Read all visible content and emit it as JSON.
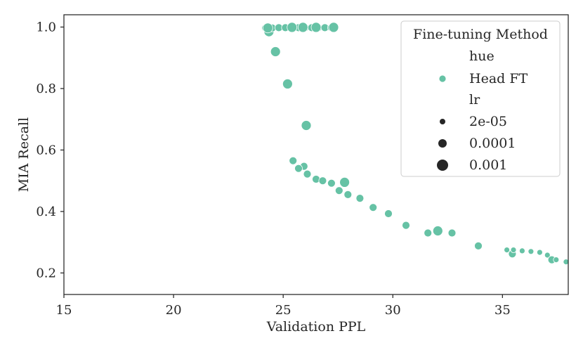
{
  "chart_data": {
    "type": "scatter",
    "xlabel": "Validation PPL",
    "ylabel": "MIA Recall",
    "xlim": [
      15,
      38
    ],
    "ylim": [
      0.13,
      1.04
    ],
    "xticks": [
      15,
      20,
      25,
      30,
      35
    ],
    "yticks": [
      0.2,
      0.4,
      0.6,
      0.8,
      1.0
    ],
    "ytick_labels": [
      "0.2",
      "0.4",
      "0.6",
      "0.8",
      "1.0"
    ],
    "grid": false,
    "color": "#66c2a5",
    "legend": {
      "placement": "top-right",
      "title": "Fine-tuning Method",
      "hue_header": "hue",
      "hue_label": "Head FT",
      "size_header": "lr",
      "size_labels": [
        "2e-05",
        "0.0001",
        "0.001"
      ]
    },
    "series": [
      {
        "name": "Head FT",
        "points": [
          {
            "x": 24.2,
            "y": 0.997,
            "lr": "0.0001"
          },
          {
            "x": 24.35,
            "y": 0.985,
            "lr": "0.001"
          },
          {
            "x": 24.5,
            "y": 0.997,
            "lr": "0.0001"
          },
          {
            "x": 24.8,
            "y": 0.998,
            "lr": "0.0001"
          },
          {
            "x": 25.1,
            "y": 0.998,
            "lr": "0.0001"
          },
          {
            "x": 25.4,
            "y": 0.998,
            "lr": "0.0001"
          },
          {
            "x": 25.7,
            "y": 0.998,
            "lr": "0.0001"
          },
          {
            "x": 26.0,
            "y": 0.998,
            "lr": "0.0001"
          },
          {
            "x": 26.3,
            "y": 0.998,
            "lr": "0.0001"
          },
          {
            "x": 26.6,
            "y": 0.998,
            "lr": "0.0001"
          },
          {
            "x": 26.9,
            "y": 0.998,
            "lr": "0.0001"
          },
          {
            "x": 27.2,
            "y": 0.998,
            "lr": "0.0001"
          },
          {
            "x": 24.3,
            "y": 0.997,
            "lr": "0.001"
          },
          {
            "x": 25.4,
            "y": 0.999,
            "lr": "0.001"
          },
          {
            "x": 25.9,
            "y": 0.999,
            "lr": "0.001"
          },
          {
            "x": 26.5,
            "y": 0.999,
            "lr": "0.001"
          },
          {
            "x": 27.3,
            "y": 0.999,
            "lr": "0.001"
          },
          {
            "x": 24.65,
            "y": 0.92,
            "lr": "0.001"
          },
          {
            "x": 25.2,
            "y": 0.815,
            "lr": "0.001"
          },
          {
            "x": 26.05,
            "y": 0.68,
            "lr": "0.001"
          },
          {
            "x": 25.45,
            "y": 0.565,
            "lr": "0.0001"
          },
          {
            "x": 25.95,
            "y": 0.547,
            "lr": "0.0001"
          },
          {
            "x": 25.7,
            "y": 0.54,
            "lr": "0.0001"
          },
          {
            "x": 26.1,
            "y": 0.522,
            "lr": "0.0001"
          },
          {
            "x": 26.5,
            "y": 0.505,
            "lr": "0.0001"
          },
          {
            "x": 26.8,
            "y": 0.5,
            "lr": "0.0001"
          },
          {
            "x": 27.2,
            "y": 0.492,
            "lr": "0.0001"
          },
          {
            "x": 27.8,
            "y": 0.495,
            "lr": "0.001"
          },
          {
            "x": 27.55,
            "y": 0.468,
            "lr": "0.0001"
          },
          {
            "x": 27.95,
            "y": 0.455,
            "lr": "0.0001"
          },
          {
            "x": 28.5,
            "y": 0.443,
            "lr": "0.0001"
          },
          {
            "x": 29.1,
            "y": 0.413,
            "lr": "0.0001"
          },
          {
            "x": 29.8,
            "y": 0.393,
            "lr": "0.0001"
          },
          {
            "x": 30.6,
            "y": 0.355,
            "lr": "0.0001"
          },
          {
            "x": 31.6,
            "y": 0.33,
            "lr": "0.0001"
          },
          {
            "x": 32.05,
            "y": 0.337,
            "lr": "0.001"
          },
          {
            "x": 32.7,
            "y": 0.33,
            "lr": "0.0001"
          },
          {
            "x": 33.9,
            "y": 0.288,
            "lr": "0.0001"
          },
          {
            "x": 35.2,
            "y": 0.275,
            "lr": "2e-05"
          },
          {
            "x": 35.45,
            "y": 0.262,
            "lr": "0.0001"
          },
          {
            "x": 35.5,
            "y": 0.275,
            "lr": "2e-05"
          },
          {
            "x": 35.9,
            "y": 0.272,
            "lr": "2e-05"
          },
          {
            "x": 36.3,
            "y": 0.27,
            "lr": "2e-05"
          },
          {
            "x": 36.7,
            "y": 0.267,
            "lr": "2e-05"
          },
          {
            "x": 37.05,
            "y": 0.258,
            "lr": "2e-05"
          },
          {
            "x": 37.25,
            "y": 0.243,
            "lr": "0.0001"
          },
          {
            "x": 37.45,
            "y": 0.243,
            "lr": "2e-05"
          },
          {
            "x": 37.9,
            "y": 0.236,
            "lr": "2e-05"
          }
        ]
      }
    ]
  }
}
